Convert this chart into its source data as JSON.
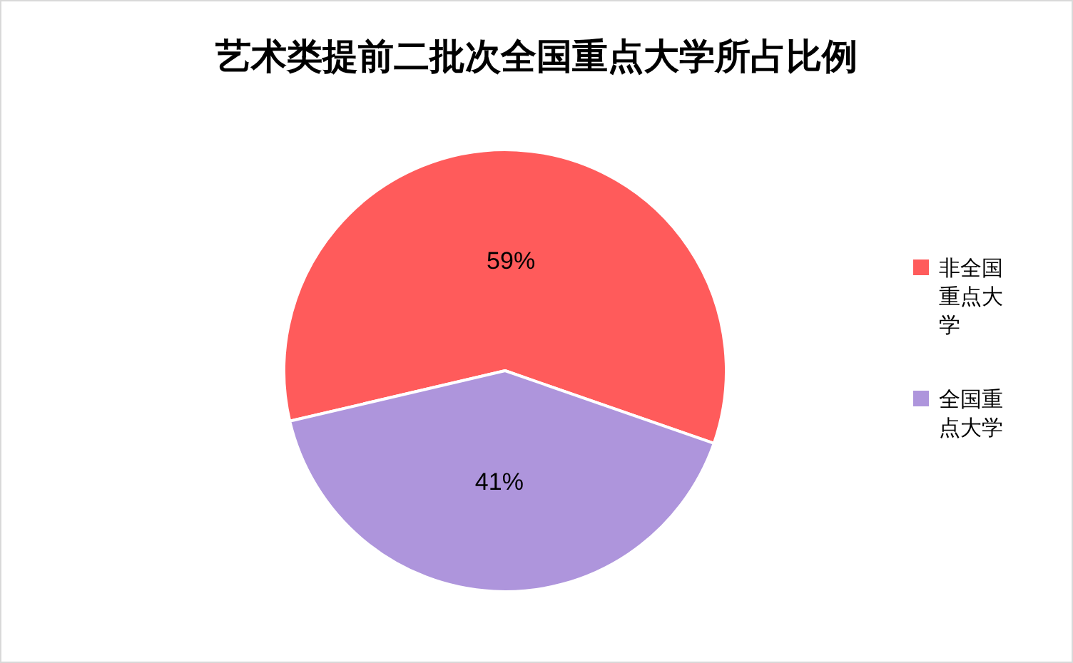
{
  "chart_data": {
    "type": "pie",
    "title": "艺术类提前二批次全国重点大学所占比例",
    "categories": [
      "非全国重点大学",
      "全国重点大学"
    ],
    "values": [
      59,
      41
    ],
    "colors": [
      "#ff5b5b",
      "#ae95dc"
    ],
    "value_labels": [
      "59%",
      "41%"
    ],
    "legend": "right"
  }
}
